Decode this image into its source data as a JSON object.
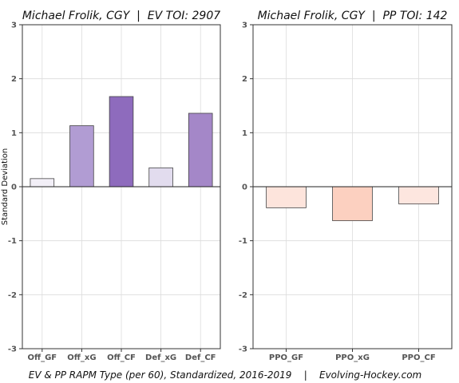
{
  "footer_text": "EV & PP RAPM Type (per 60), Standardized, 2016-2019    |    Evolving-Hockey.com",
  "chart_data": [
    {
      "type": "bar",
      "title": "Michael Frolik, CGY  |  EV TOI: 2907",
      "ylabel": "Standard Deviation",
      "xlabel": "",
      "ylim": [
        -3,
        3
      ],
      "yticks": [
        -3,
        -2,
        -1,
        0,
        1,
        2,
        3
      ],
      "grid": true,
      "categories": [
        "Off_GF",
        "Off_xG",
        "Off_CF",
        "Def_xG",
        "Def_CF"
      ],
      "values": [
        0.15,
        1.13,
        1.67,
        0.35,
        1.36
      ],
      "colors": [
        "#f2eff7",
        "#b19cd3",
        "#8e6bbd",
        "#e2dcee",
        "#a487c8"
      ]
    },
    {
      "type": "bar",
      "title": "Michael Frolik, CGY  |  PP TOI: 142",
      "ylabel": "",
      "xlabel": "",
      "ylim": [
        -3,
        3
      ],
      "yticks": [
        -3,
        -2,
        -1,
        0,
        1,
        2,
        3
      ],
      "grid": true,
      "categories": [
        "PPO_GF",
        "PPO_xG",
        "PPO_CF"
      ],
      "values": [
        -0.39,
        -0.63,
        -0.32
      ],
      "colors": [
        "#fde4dc",
        "#fcd0c0",
        "#fde6df"
      ]
    }
  ]
}
